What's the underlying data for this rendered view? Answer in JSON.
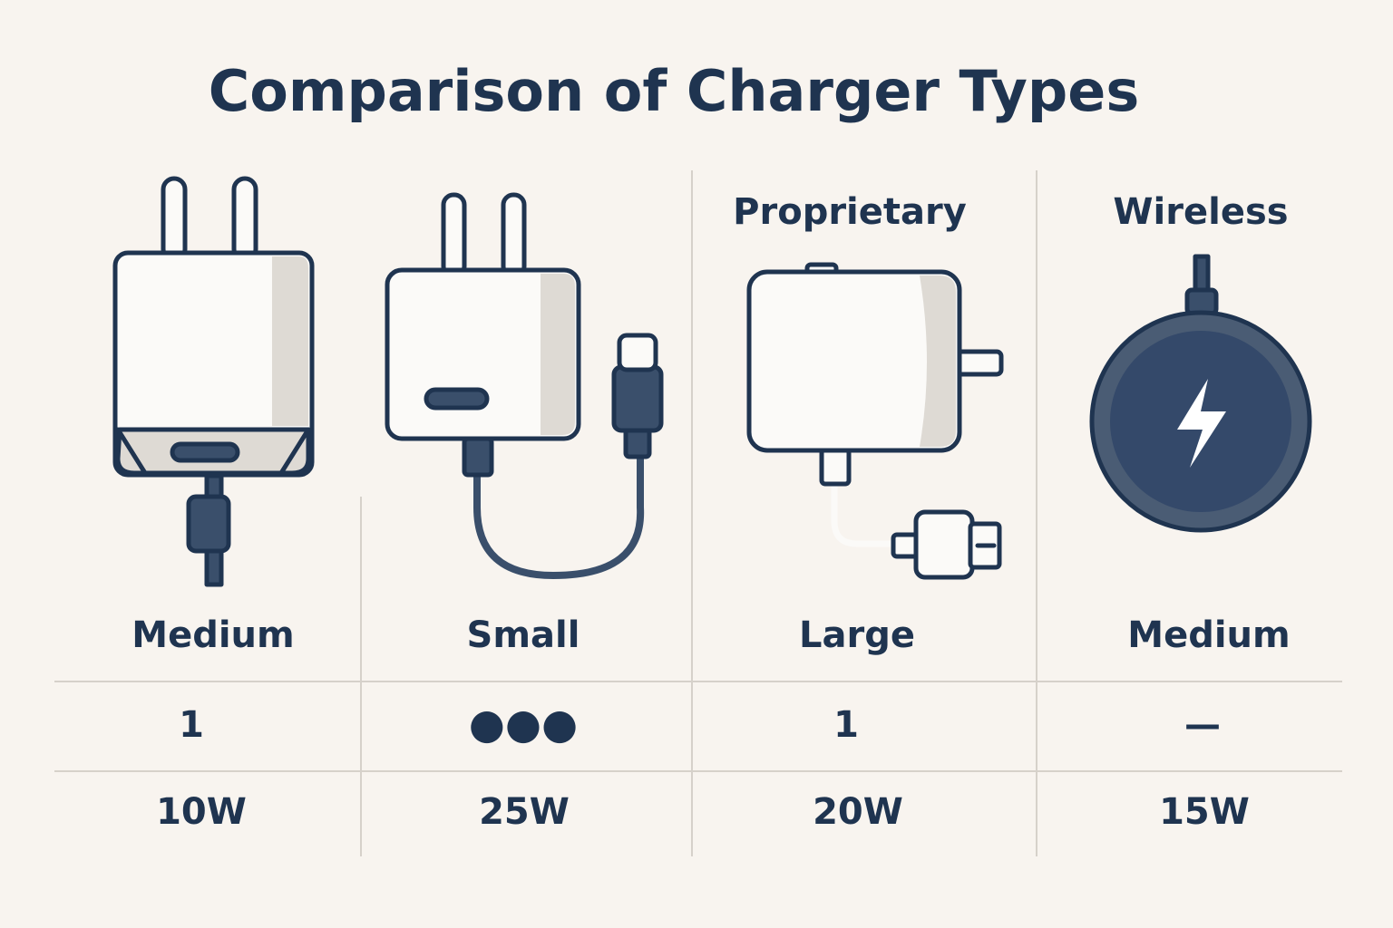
{
  "title": "Comparison of Charger Types",
  "columns": [
    {
      "size": "Medium",
      "ports": "1",
      "power": "10W"
    },
    {
      "size": "Small",
      "ports": "●●●",
      "power": "25W"
    },
    {
      "label": "Proprietary",
      "size": "Large",
      "ports": "1",
      "power": "20W"
    },
    {
      "label": "Wireless",
      "size": "Medium",
      "ports": "—",
      "power": "15W"
    }
  ]
}
